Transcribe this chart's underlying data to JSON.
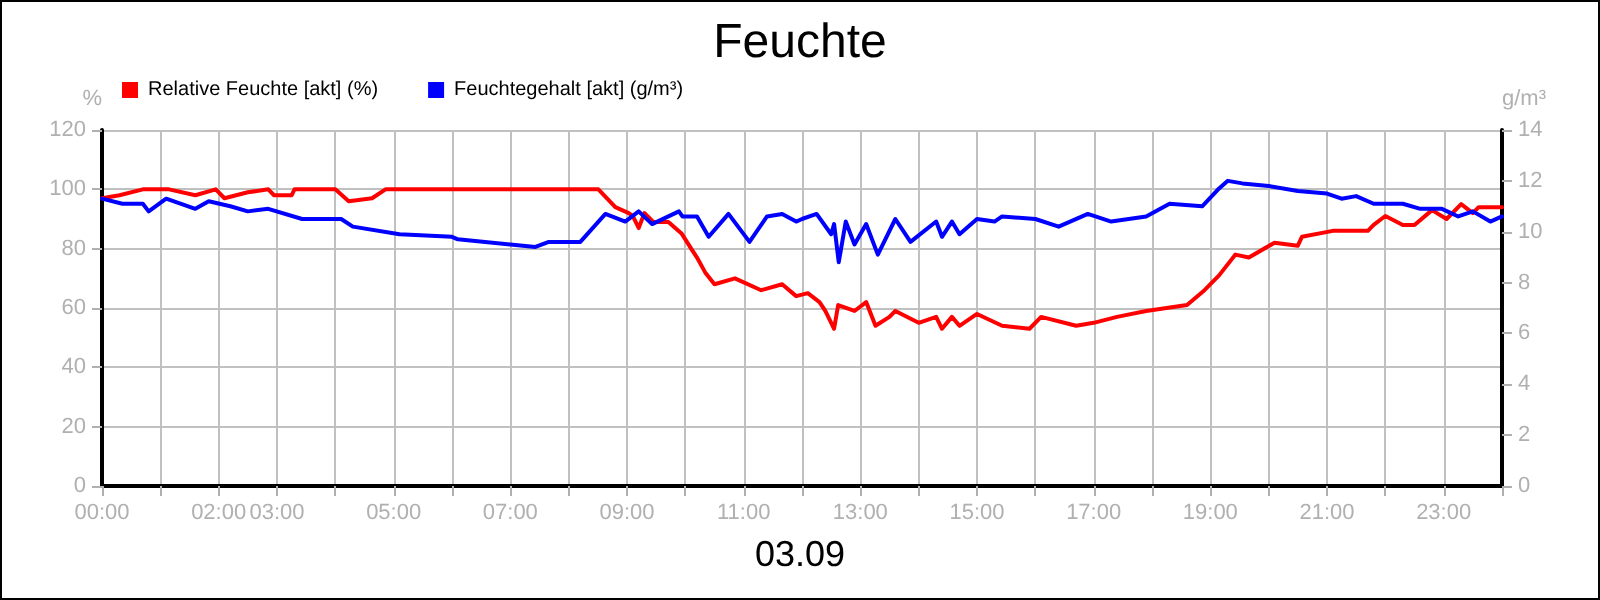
{
  "chart_data": {
    "type": "line",
    "title": "Feuchte",
    "xlabel": "03.09",
    "ylabel": "%",
    "y2label": "g/m³",
    "xlim": [
      0,
      24
    ],
    "xticks": [
      {
        "value": 0,
        "label": "00:00"
      },
      {
        "value": 1,
        "label": null
      },
      {
        "value": 2,
        "label": "02:00"
      },
      {
        "value": 3,
        "label": "03:00"
      },
      {
        "value": 4,
        "label": null
      },
      {
        "value": 5,
        "label": "05:00"
      },
      {
        "value": 6,
        "label": null
      },
      {
        "value": 7,
        "label": "07:00"
      },
      {
        "value": 8,
        "label": null
      },
      {
        "value": 9,
        "label": "09:00"
      },
      {
        "value": 10,
        "label": null
      },
      {
        "value": 11,
        "label": "11:00"
      },
      {
        "value": 12,
        "label": null
      },
      {
        "value": 13,
        "label": "13:00"
      },
      {
        "value": 14,
        "label": null
      },
      {
        "value": 15,
        "label": "15:00"
      },
      {
        "value": 16,
        "label": null
      },
      {
        "value": 17,
        "label": "17:00"
      },
      {
        "value": 18,
        "label": null
      },
      {
        "value": 19,
        "label": "19:00"
      },
      {
        "value": 20,
        "label": null
      },
      {
        "value": 21,
        "label": "21:00"
      },
      {
        "value": 22,
        "label": null
      },
      {
        "value": 23,
        "label": "23:00"
      },
      {
        "value": 24,
        "label": null
      }
    ],
    "ylim": [
      0,
      120
    ],
    "yticks": [
      0,
      20,
      40,
      60,
      80,
      100,
      120
    ],
    "y2lim": [
      0,
      14
    ],
    "y2ticks": [
      0,
      2,
      4,
      6,
      8,
      10,
      12,
      14
    ],
    "grid": true,
    "legend": "top left",
    "marker": "none",
    "line_style": "solid",
    "series": [
      {
        "name": "Relative Feuchte [akt] (%)",
        "color": "#ff0000",
        "x": [
          0,
          0.3,
          0.7,
          1.15,
          1.6,
          1.95,
          2.1,
          2.5,
          2.85,
          2.95,
          3.25,
          3.3,
          4.0,
          4.23,
          4.63,
          4.86,
          8.51,
          8.8,
          9.03,
          9.1,
          9.2,
          9.3,
          9.45,
          9.71,
          9.94,
          10.1,
          10.2,
          10.34,
          10.5,
          10.85,
          11.3,
          11.66,
          11.9,
          12.1,
          12.3,
          12.4,
          12.55,
          12.62,
          12.9,
          13.1,
          13.26,
          13.5,
          13.6,
          14.0,
          14.3,
          14.4,
          14.57,
          14.7,
          15.0,
          15.43,
          15.9,
          16.1,
          16.7,
          17.0,
          17.4,
          17.9,
          18.6,
          18.9,
          19.15,
          19.43,
          19.66,
          20.1,
          20.5,
          20.57,
          21.1,
          21.7,
          21.8,
          22.0,
          22.3,
          22.5,
          22.8,
          23.05,
          23.3,
          23.5,
          23.6,
          23.9,
          24.0
        ],
        "values": [
          97,
          98,
          100,
          100,
          98,
          100,
          97,
          99,
          100,
          98,
          98,
          100,
          100,
          96,
          97,
          100,
          100,
          94,
          92,
          91,
          87,
          92,
          89,
          89,
          85,
          80,
          77,
          72,
          68,
          70,
          66,
          68,
          64,
          65,
          62,
          59,
          53,
          61,
          59,
          62,
          54,
          57,
          59,
          55,
          57,
          53,
          57,
          54,
          58,
          54,
          53,
          57,
          54,
          55,
          57,
          59,
          61,
          66,
          71,
          78,
          77,
          82,
          81,
          84,
          86,
          86,
          88,
          91,
          88,
          88,
          93,
          90,
          95,
          92,
          94,
          94,
          94
        ]
      },
      {
        "name": "Feuchtegehalt [akt] (g/m³)",
        "color": "#0000ff",
        "axis": "y2",
        "x": [
          0,
          0.35,
          0.7,
          0.8,
          1.1,
          1.6,
          1.83,
          2.2,
          2.5,
          2.85,
          3.43,
          4.1,
          4.3,
          5.1,
          6.0,
          6.1,
          7.0,
          7.43,
          7.66,
          8.2,
          8.63,
          8.97,
          9.2,
          9.43,
          9.89,
          9.95,
          10.2,
          10.4,
          10.74,
          11.1,
          11.4,
          11.66,
          11.9,
          12.0,
          12.25,
          12.5,
          12.55,
          12.63,
          12.75,
          12.9,
          13.1,
          13.3,
          13.6,
          13.86,
          14.3,
          14.4,
          14.57,
          14.7,
          15.0,
          15.3,
          15.43,
          16.0,
          16.4,
          16.9,
          17.3,
          17.9,
          18.3,
          18.86,
          19.15,
          19.3,
          19.55,
          20.0,
          20.5,
          21.0,
          21.25,
          21.5,
          21.8,
          22.3,
          22.6,
          22.97,
          23.25,
          23.5,
          23.8,
          24.0
        ],
        "values": [
          11.3,
          11.1,
          11.1,
          10.8,
          11.3,
          10.9,
          11.2,
          11.0,
          10.8,
          10.9,
          10.5,
          10.5,
          10.2,
          9.9,
          9.8,
          9.7,
          9.5,
          9.4,
          9.6,
          9.6,
          10.7,
          10.4,
          10.8,
          10.3,
          10.8,
          10.6,
          10.6,
          9.8,
          10.7,
          9.6,
          10.6,
          10.7,
          10.4,
          10.5,
          10.7,
          9.9,
          10.3,
          8.8,
          10.4,
          9.5,
          10.3,
          9.1,
          10.5,
          9.6,
          10.4,
          9.8,
          10.4,
          9.9,
          10.5,
          10.4,
          10.6,
          10.5,
          10.2,
          10.7,
          10.4,
          10.6,
          11.1,
          11.0,
          11.7,
          12.0,
          11.9,
          11.8,
          11.6,
          11.5,
          11.3,
          11.4,
          11.1,
          11.1,
          10.9,
          10.9,
          10.6,
          10.8,
          10.4,
          10.6
        ]
      }
    ]
  }
}
